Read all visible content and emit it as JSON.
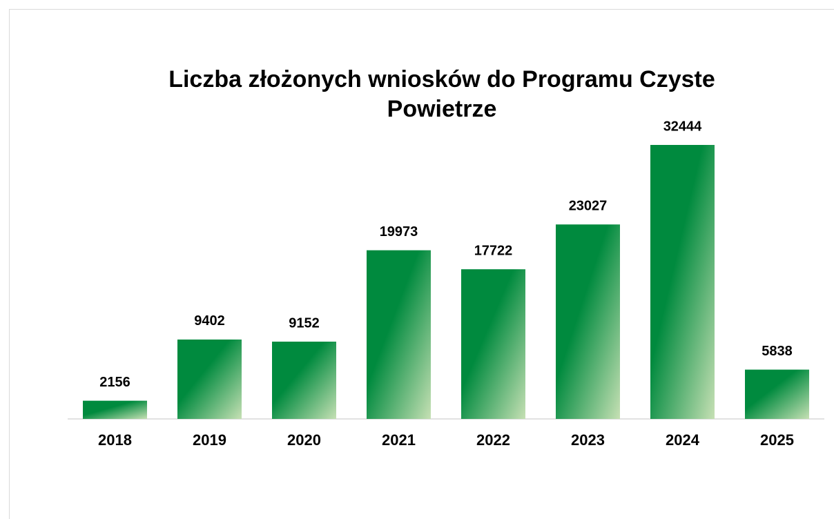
{
  "chart_data": {
    "type": "bar",
    "title": "Liczba złożonych wniosków do Programu Czyste Powietrze",
    "categories": [
      "2018",
      "2019",
      "2020",
      "2021",
      "2022",
      "2023",
      "2024",
      "2025"
    ],
    "values": [
      2156,
      9402,
      9152,
      19973,
      17722,
      23027,
      32444,
      5838
    ],
    "color": "#008a3e",
    "gradient_color": "#c6e0b4"
  }
}
